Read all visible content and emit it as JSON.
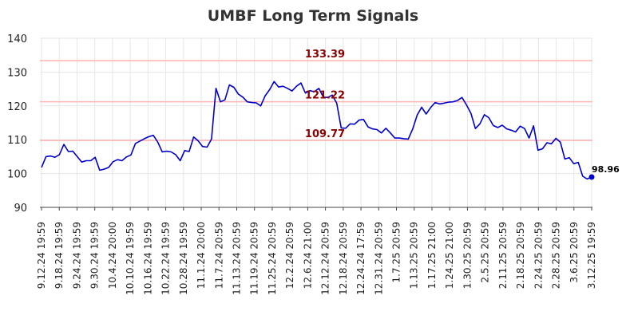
{
  "chart_data": {
    "type": "line",
    "title": "UMBF Long Term Signals",
    "xlabel": "",
    "ylabel": "",
    "ylim": [
      90,
      140
    ],
    "yticks": [
      90,
      100,
      110,
      120,
      130,
      140
    ],
    "grid": true,
    "line_color": "#0000cc",
    "ref_color": "#ffb3b3",
    "ref_label_color": "#8b0000",
    "reference_lines": [
      {
        "value": 133.39,
        "label": "133.39"
      },
      {
        "value": 121.22,
        "label": "121.22"
      },
      {
        "value": 109.77,
        "label": "109.77"
      }
    ],
    "last_point": {
      "value": 98.96,
      "label": "98.96"
    },
    "xtick_labels": [
      "9.12.24 19:59",
      "9.18.24 19:59",
      "9.24.24 19:59",
      "9.30.24 19:59",
      "10.4.24 20:00",
      "10.10.24 19:59",
      "10.16.24 19:59",
      "10.22.24 19:59",
      "10.28.24 19:59",
      "11.1.24 20:00",
      "11.7.24 20:59",
      "11.13.24 20:59",
      "11.19.24 20:59",
      "11.25.24 20:59",
      "12.2.24 20:59",
      "12.6.24 21:00",
      "12.12.24 20:59",
      "12.18.24 20:59",
      "12.24.24 17:59",
      "12.31.24 20:59",
      "1.7.25 20:59",
      "1.13.25 20:59",
      "1.17.25 21:00",
      "1.24.25 21:00",
      "1.30.25 20:59",
      "2.5.25 20:59",
      "2.11.25 20:59",
      "2.18.25 20:59",
      "2.24.25 20:59",
      "2.28.25 20:59",
      "3.6.25 20:59",
      "3.12.25 19:59"
    ],
    "values": [
      101.8,
      105.0,
      105.2,
      104.8,
      105.6,
      108.6,
      106.5,
      106.6,
      105.0,
      103.4,
      103.8,
      103.8,
      104.8,
      101.0,
      101.3,
      101.8,
      103.5,
      104.1,
      103.8,
      104.9,
      105.5,
      108.9,
      109.6,
      110.3,
      110.9,
      111.3,
      109.3,
      106.4,
      106.6,
      106.4,
      105.6,
      103.8,
      106.8,
      106.5,
      110.8,
      109.7,
      108.0,
      107.8,
      110.2,
      125.2,
      121.2,
      121.8,
      126.2,
      125.5,
      123.5,
      122.6,
      121.2,
      121.0,
      120.9,
      120.0,
      123.0,
      124.8,
      127.2,
      125.6,
      125.8,
      125.2,
      124.4,
      125.8,
      126.8,
      123.8,
      124.5,
      124.2,
      125.2,
      122.6,
      122.5,
      123.2,
      120.8,
      113.5,
      113.4,
      114.7,
      114.6,
      115.8,
      116.0,
      113.8,
      113.2,
      113.0,
      112.0,
      113.4,
      112.0,
      110.5,
      110.5,
      110.3,
      110.2,
      113.2,
      117.3,
      119.6,
      117.6,
      119.5,
      121.0,
      120.6,
      120.8,
      121.1,
      121.2,
      121.6,
      122.5,
      120.3,
      117.8,
      113.3,
      114.7,
      117.4,
      116.5,
      114.2,
      113.6,
      114.3,
      113.2,
      112.8,
      112.3,
      114.0,
      113.3,
      110.5,
      114.1,
      106.9,
      107.3,
      109.1,
      108.8,
      110.4,
      109.3,
      104.3,
      104.7,
      102.9,
      103.3,
      99.2,
      98.4,
      98.96
    ]
  }
}
